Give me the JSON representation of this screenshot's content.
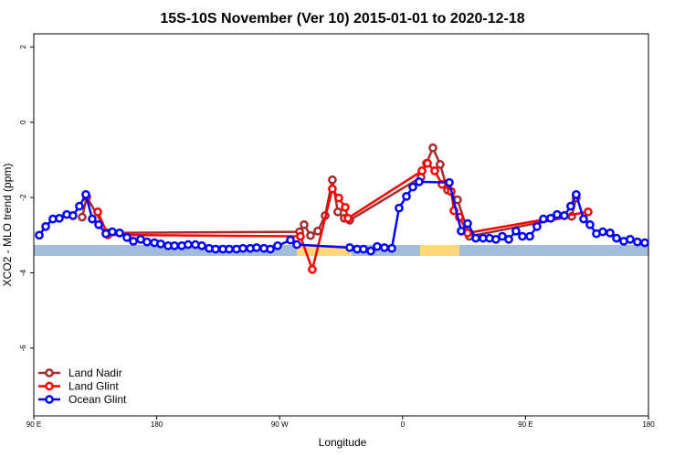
{
  "chart_data": {
    "type": "line",
    "title": "15S-10S November (Ver 10)   2015-01-01 to 2020-12-18",
    "x_label": "Longitude",
    "y_label": "XCO2 - MLO trend (ppm)",
    "xlim": [
      90,
      540
    ],
    "ylim": [
      -7.8,
      2.35
    ],
    "xticks": [
      {
        "value": 90,
        "label": "90 E"
      },
      180,
      {
        "value": 270,
        "label": "90 W"
      },
      {
        "value": 360,
        "label": "0"
      },
      {
        "value": 450,
        "label": "90 E"
      },
      {
        "value": 540,
        "label": "180"
      }
    ],
    "yticks": [
      -6,
      -4,
      -2,
      0,
      2
    ],
    "legend": "bottom-left",
    "series": [
      {
        "name": "Land Nadir",
        "color": "#a52a2a",
        "x": [
          125.4,
          128.8,
          144.2,
          284.6,
          287.9,
          292.6,
          297.9,
          303.3,
          308.6,
          312.6,
          317.3,
          321.3,
          373.5,
          377.5,
          382.2,
          387.5,
          392.9,
          400.2,
          408.9,
          483.8,
          487.1
        ],
        "values": [
          -2.52,
          -1.99,
          -2.94,
          -2.91,
          -2.72,
          -3.01,
          -2.89,
          -2.48,
          -1.53,
          -2.38,
          -2.55,
          -2.6,
          -1.46,
          -1.09,
          -0.68,
          -1.12,
          -1.8,
          -2.06,
          -3.03,
          -2.5,
          -2.01
        ]
      },
      {
        "name": "Land Glint",
        "color": "#ff0000",
        "x": [
          136.8,
          144.2,
          285.2,
          293.9,
          308.6,
          313.3,
          318.0,
          320.0,
          374.2,
          378.2,
          383.5,
          388.9,
          395.6,
          397.6,
          401.6,
          407.6,
          495.8
        ],
        "values": [
          -2.38,
          -2.99,
          -3.03,
          -3.91,
          -1.77,
          -2.01,
          -2.26,
          -2.55,
          -1.29,
          -1.09,
          -1.29,
          -1.65,
          -1.84,
          -2.35,
          -2.52,
          -2.94,
          -2.38
        ]
      },
      {
        "name": "Ocean Glint",
        "color": "#0000ff",
        "x": [
          94.0,
          98.7,
          104.0,
          108.7,
          114.1,
          118.7,
          123.4,
          128.1,
          132.8,
          137.5,
          142.8,
          147.5,
          152.8,
          158.2,
          162.9,
          168.2,
          172.9,
          178.3,
          182.9,
          188.3,
          193.0,
          198.3,
          203.0,
          208.3,
          213.0,
          218.4,
          223.1,
          228.4,
          233.1,
          238.4,
          243.1,
          248.5,
          253.1,
          258.5,
          263.2,
          268.5,
          277.9,
          282.6,
          321.3,
          326.7,
          331.4,
          336.7,
          341.4,
          346.7,
          352.1,
          357.4,
          362.8,
          367.5,
          372.1,
          394.2,
          402.9,
          407.6,
          413.6,
          418.9,
          423.6,
          428.3,
          433.0,
          437.7,
          443.0,
          447.7,
          453.1,
          458.4,
          463.1,
          468.4,
          473.1,
          478.4,
          483.1,
          487.1,
          492.5,
          497.2,
          501.9,
          506.5,
          511.9,
          516.6,
          521.9,
          526.6,
          531.9,
          537.3
        ],
        "values": [
          -3.0,
          -2.77,
          -2.57,
          -2.55,
          -2.45,
          -2.48,
          -2.23,
          -1.92,
          -2.57,
          -2.72,
          -2.96,
          -2.91,
          -2.94,
          -3.06,
          -3.16,
          -3.11,
          -3.18,
          -3.2,
          -3.23,
          -3.28,
          -3.28,
          -3.28,
          -3.25,
          -3.25,
          -3.28,
          -3.35,
          -3.37,
          -3.37,
          -3.37,
          -3.37,
          -3.35,
          -3.35,
          -3.33,
          -3.35,
          -3.37,
          -3.28,
          -3.13,
          -3.25,
          -3.33,
          -3.37,
          -3.37,
          -3.42,
          -3.3,
          -3.33,
          -3.35,
          -2.28,
          -1.97,
          -1.72,
          -1.58,
          -1.6,
          -2.89,
          -2.69,
          -3.08,
          -3.08,
          -3.08,
          -3.11,
          -3.03,
          -3.11,
          -2.89,
          -3.03,
          -3.03,
          -2.77,
          -2.57,
          -2.55,
          -2.45,
          -2.48,
          -2.23,
          -1.92,
          -2.57,
          -2.72,
          -2.96,
          -2.91,
          -2.94,
          -3.08,
          -3.16,
          -3.11,
          -3.18,
          -3.2
        ]
      }
    ]
  }
}
